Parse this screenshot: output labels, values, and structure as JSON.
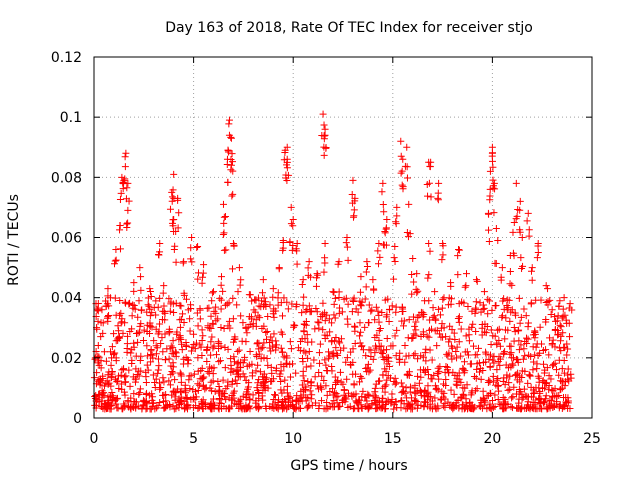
{
  "chart_data": {
    "type": "scatter",
    "title": "Day 163 of 2018, Rate Of TEC Index for receiver stjo",
    "xlabel": "GPS time / hours",
    "ylabel": "ROTI / TECUs",
    "xlim": [
      0,
      25
    ],
    "ylim": [
      0,
      0.12
    ],
    "x_ticks": [
      0,
      5,
      10,
      15,
      20,
      25
    ],
    "x_tick_labels": [
      "0",
      "5",
      "10",
      "15",
      "20",
      "25"
    ],
    "y_ticks": [
      0,
      0.02,
      0.04,
      0.06,
      0.08,
      0.1,
      0.12
    ],
    "y_tick_labels": [
      "0",
      "0.02",
      "0.04",
      "0.06",
      "0.08",
      "0.1",
      "0.12"
    ],
    "grid": true,
    "marker": "+",
    "color": "#ff0000",
    "series": [
      {
        "name": "ROTI",
        "base_band": {
          "x_range": [
            0,
            24
          ],
          "y_range": [
            0.003,
            0.04
          ],
          "typical": 0.012
        },
        "points": [
          {
            "x": 0.1,
            "y": 0.038
          },
          {
            "x": 0.4,
            "y": 0.036
          },
          {
            "x": 0.7,
            "y": 0.043
          },
          {
            "x": 1.1,
            "y": 0.056
          },
          {
            "x": 1.3,
            "y": 0.064
          },
          {
            "x": 1.4,
            "y": 0.08
          },
          {
            "x": 1.5,
            "y": 0.079
          },
          {
            "x": 1.6,
            "y": 0.088
          },
          {
            "x": 1.7,
            "y": 0.078
          },
          {
            "x": 1.7,
            "y": 0.069
          },
          {
            "x": 2.0,
            "y": 0.045
          },
          {
            "x": 2.3,
            "y": 0.05
          },
          {
            "x": 2.8,
            "y": 0.043
          },
          {
            "x": 3.3,
            "y": 0.058
          },
          {
            "x": 3.5,
            "y": 0.044
          },
          {
            "x": 3.9,
            "y": 0.075
          },
          {
            "x": 4.0,
            "y": 0.081
          },
          {
            "x": 4.0,
            "y": 0.066
          },
          {
            "x": 4.1,
            "y": 0.062
          },
          {
            "x": 4.2,
            "y": 0.073
          },
          {
            "x": 4.5,
            "y": 0.052
          },
          {
            "x": 4.9,
            "y": 0.06
          },
          {
            "x": 5.2,
            "y": 0.057
          },
          {
            "x": 5.5,
            "y": 0.051
          },
          {
            "x": 6.0,
            "y": 0.042
          },
          {
            "x": 6.4,
            "y": 0.047
          },
          {
            "x": 6.5,
            "y": 0.071
          },
          {
            "x": 6.6,
            "y": 0.067
          },
          {
            "x": 6.7,
            "y": 0.086
          },
          {
            "x": 6.8,
            "y": 0.094
          },
          {
            "x": 6.8,
            "y": 0.099
          },
          {
            "x": 6.9,
            "y": 0.093
          },
          {
            "x": 6.9,
            "y": 0.084
          },
          {
            "x": 7.0,
            "y": 0.058
          },
          {
            "x": 7.3,
            "y": 0.05
          },
          {
            "x": 7.8,
            "y": 0.041
          },
          {
            "x": 8.5,
            "y": 0.046
          },
          {
            "x": 9.0,
            "y": 0.043
          },
          {
            "x": 9.3,
            "y": 0.05
          },
          {
            "x": 9.5,
            "y": 0.059
          },
          {
            "x": 9.6,
            "y": 0.089
          },
          {
            "x": 9.7,
            "y": 0.086
          },
          {
            "x": 9.7,
            "y": 0.09
          },
          {
            "x": 9.9,
            "y": 0.07
          },
          {
            "x": 10.0,
            "y": 0.066
          },
          {
            "x": 10.2,
            "y": 0.058
          },
          {
            "x": 10.5,
            "y": 0.046
          },
          {
            "x": 10.8,
            "y": 0.052
          },
          {
            "x": 11.2,
            "y": 0.048
          },
          {
            "x": 11.5,
            "y": 0.101
          },
          {
            "x": 11.6,
            "y": 0.096
          },
          {
            "x": 11.6,
            "y": 0.094
          },
          {
            "x": 11.6,
            "y": 0.058
          },
          {
            "x": 12.0,
            "y": 0.042
          },
          {
            "x": 12.3,
            "y": 0.052
          },
          {
            "x": 12.7,
            "y": 0.06
          },
          {
            "x": 13.0,
            "y": 0.079
          },
          {
            "x": 13.1,
            "y": 0.073
          },
          {
            "x": 13.4,
            "y": 0.047
          },
          {
            "x": 13.7,
            "y": 0.052
          },
          {
            "x": 14.0,
            "y": 0.046
          },
          {
            "x": 14.3,
            "y": 0.058
          },
          {
            "x": 14.5,
            "y": 0.078
          },
          {
            "x": 14.6,
            "y": 0.062
          },
          {
            "x": 14.7,
            "y": 0.066
          },
          {
            "x": 15.1,
            "y": 0.057
          },
          {
            "x": 15.2,
            "y": 0.07
          },
          {
            "x": 15.4,
            "y": 0.092
          },
          {
            "x": 15.5,
            "y": 0.086
          },
          {
            "x": 15.7,
            "y": 0.09
          },
          {
            "x": 15.8,
            "y": 0.071
          },
          {
            "x": 16.0,
            "y": 0.053
          },
          {
            "x": 16.2,
            "y": 0.048
          },
          {
            "x": 16.8,
            "y": 0.085
          },
          {
            "x": 16.9,
            "y": 0.085
          },
          {
            "x": 16.8,
            "y": 0.058
          },
          {
            "x": 17.1,
            "y": 0.042
          },
          {
            "x": 17.3,
            "y": 0.078
          },
          {
            "x": 17.5,
            "y": 0.058
          },
          {
            "x": 17.9,
            "y": 0.045
          },
          {
            "x": 18.3,
            "y": 0.056
          },
          {
            "x": 18.7,
            "y": 0.048
          },
          {
            "x": 19.2,
            "y": 0.046
          },
          {
            "x": 19.6,
            "y": 0.042
          },
          {
            "x": 19.8,
            "y": 0.068
          },
          {
            "x": 19.9,
            "y": 0.082
          },
          {
            "x": 20.0,
            "y": 0.088
          },
          {
            "x": 20.0,
            "y": 0.09
          },
          {
            "x": 20.1,
            "y": 0.078
          },
          {
            "x": 20.2,
            "y": 0.063
          },
          {
            "x": 20.5,
            "y": 0.05
          },
          {
            "x": 20.9,
            "y": 0.054
          },
          {
            "x": 21.1,
            "y": 0.065
          },
          {
            "x": 21.2,
            "y": 0.078
          },
          {
            "x": 21.4,
            "y": 0.072
          },
          {
            "x": 21.5,
            "y": 0.06
          },
          {
            "x": 21.8,
            "y": 0.068
          },
          {
            "x": 22.0,
            "y": 0.05
          },
          {
            "x": 22.3,
            "y": 0.058
          },
          {
            "x": 22.7,
            "y": 0.044
          },
          {
            "x": 23.0,
            "y": 0.036
          },
          {
            "x": 23.3,
            "y": 0.034
          },
          {
            "x": 23.6,
            "y": 0.04
          },
          {
            "x": 23.9,
            "y": 0.038
          }
        ]
      }
    ]
  }
}
